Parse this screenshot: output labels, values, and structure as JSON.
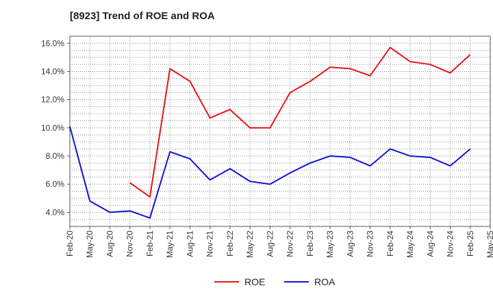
{
  "title": "[8923]  Trend of ROE and ROA",
  "chart_data": {
    "type": "line",
    "title": "[8923]  Trend of ROE and ROA",
    "xlabel": "",
    "ylabel": "",
    "ylim": [
      3.0,
      16.5
    ],
    "y_ticks": [
      "4.0%",
      "6.0%",
      "8.0%",
      "10.0%",
      "12.0%",
      "14.0%",
      "16.0%"
    ],
    "y_tick_values": [
      4,
      6,
      8,
      10,
      12,
      14,
      16
    ],
    "x_tick_labels": [
      "Feb-20",
      "May-20",
      "Aug-20",
      "Nov-20",
      "Feb-21",
      "May-21",
      "Aug-21",
      "Nov-21",
      "Feb-22",
      "May-22",
      "Aug-22",
      "Nov-22",
      "Feb-23",
      "May-23",
      "Aug-23",
      "Nov-23",
      "Feb-24",
      "May-24",
      "Aug-24",
      "Nov-24",
      "Feb-25",
      "May-25"
    ],
    "grid": true,
    "legend_position": "bottom",
    "series": [
      {
        "name": "ROE",
        "color": "#e8141b",
        "values": [
          null,
          null,
          null,
          6.1,
          5.1,
          14.2,
          13.3,
          10.7,
          11.3,
          10.0,
          10.0,
          12.5,
          13.3,
          14.3,
          14.2,
          13.7,
          15.7,
          14.7,
          14.5,
          13.9,
          15.2,
          null
        ]
      },
      {
        "name": "ROA",
        "color": "#1414d2",
        "values": [
          10.1,
          4.8,
          4.0,
          4.1,
          3.6,
          8.3,
          7.8,
          6.3,
          7.1,
          6.2,
          6.0,
          6.8,
          7.5,
          8.0,
          7.9,
          7.3,
          8.5,
          8.0,
          7.9,
          7.3,
          8.5,
          null
        ]
      }
    ]
  }
}
